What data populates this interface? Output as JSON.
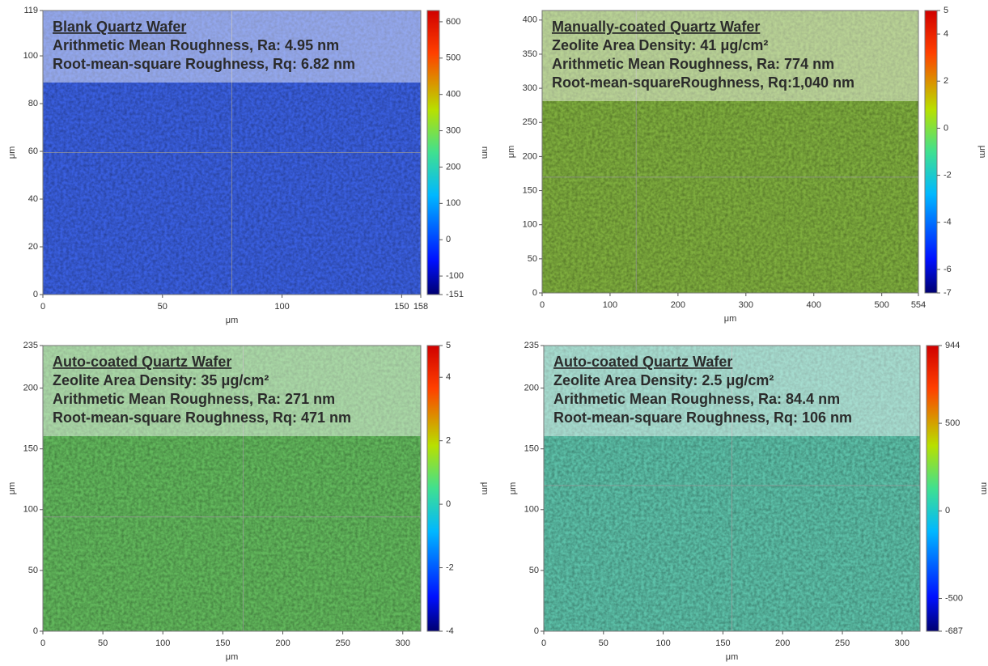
{
  "chart_data": [
    {
      "type": "heatmap",
      "annotations": [
        "Blank Quartz Wafer",
        "Arithmetic Mean Roughness, Ra: 4.95 nm",
        "Root-mean-square Roughness, Rq: 6.82 nm"
      ],
      "x_label": "μm",
      "y_label": "μm",
      "colorbar_label": "nm",
      "colormap": "jet",
      "image_color": "#3a5fe0",
      "xlim": [
        0,
        158
      ],
      "xticks": [
        0,
        50,
        100,
        150,
        158
      ],
      "ylim": [
        0,
        119
      ],
      "yticks": [
        0,
        20,
        40,
        60,
        80,
        100,
        119
      ],
      "clim": [
        -151,
        631
      ],
      "cticks": [
        -151,
        -100,
        0,
        100,
        200,
        300,
        400,
        500,
        600
      ]
    },
    {
      "type": "heatmap",
      "annotations": [
        "Manually-coated Quartz Wafer",
        "Zeolite Area Density: 41 μg/cm²",
        "Arithmetic Mean Roughness, Ra: 774 nm",
        "Root-mean-squareRoughness, Rq:1,040 nm"
      ],
      "x_label": "μm",
      "y_label": "μm",
      "colorbar_label": "μm",
      "colormap": "jet",
      "image_color": "#7fae3e",
      "xlim": [
        0,
        554
      ],
      "xticks": [
        0,
        100,
        200,
        300,
        400,
        500,
        554
      ],
      "ylim": [
        0,
        414
      ],
      "yticks": [
        0,
        50,
        100,
        150,
        200,
        250,
        300,
        350,
        400
      ],
      "clim": [
        -7,
        5
      ],
      "cticks": [
        -7,
        -6,
        -4,
        -2,
        0,
        2,
        4,
        5
      ]
    },
    {
      "type": "heatmap",
      "annotations": [
        "Auto-coated Quartz Wafer",
        "Zeolite Area Density: 35 μg/cm²",
        "Arithmetic Mean Roughness, Ra: 271 nm",
        "Root-mean-square Roughness, Rq: 471 nm"
      ],
      "x_label": "μm",
      "y_label": "μm",
      "colorbar_label": "μm",
      "colormap": "jet",
      "image_color": "#62b85c",
      "xlim": [
        0,
        315
      ],
      "xticks": [
        0,
        50,
        100,
        150,
        200,
        250,
        300
      ],
      "ylim": [
        0,
        235
      ],
      "yticks": [
        0,
        50,
        100,
        150,
        200,
        235
      ],
      "clim": [
        -4,
        5
      ],
      "cticks": [
        -4,
        -2,
        0,
        2,
        4,
        5
      ]
    },
    {
      "type": "heatmap",
      "annotations": [
        "Auto-coated Quartz Wafer",
        "Zeolite Area Density: 2.5 μg/cm²",
        "Arithmetic Mean Roughness, Ra: 84.4 nm",
        "Root-mean-square Roughness, Rq: 106 nm"
      ],
      "x_label": "μm",
      "y_label": "μm",
      "colorbar_label": "nm",
      "colormap": "jet",
      "image_color": "#5cc0a8",
      "xlim": [
        0,
        315
      ],
      "xticks": [
        0,
        50,
        100,
        150,
        200,
        250,
        300
      ],
      "ylim": [
        0,
        235
      ],
      "yticks": [
        0,
        50,
        100,
        150,
        200,
        235
      ],
      "clim": [
        -687,
        944
      ],
      "cticks": [
        -687,
        -500,
        0,
        500,
        944
      ]
    }
  ]
}
